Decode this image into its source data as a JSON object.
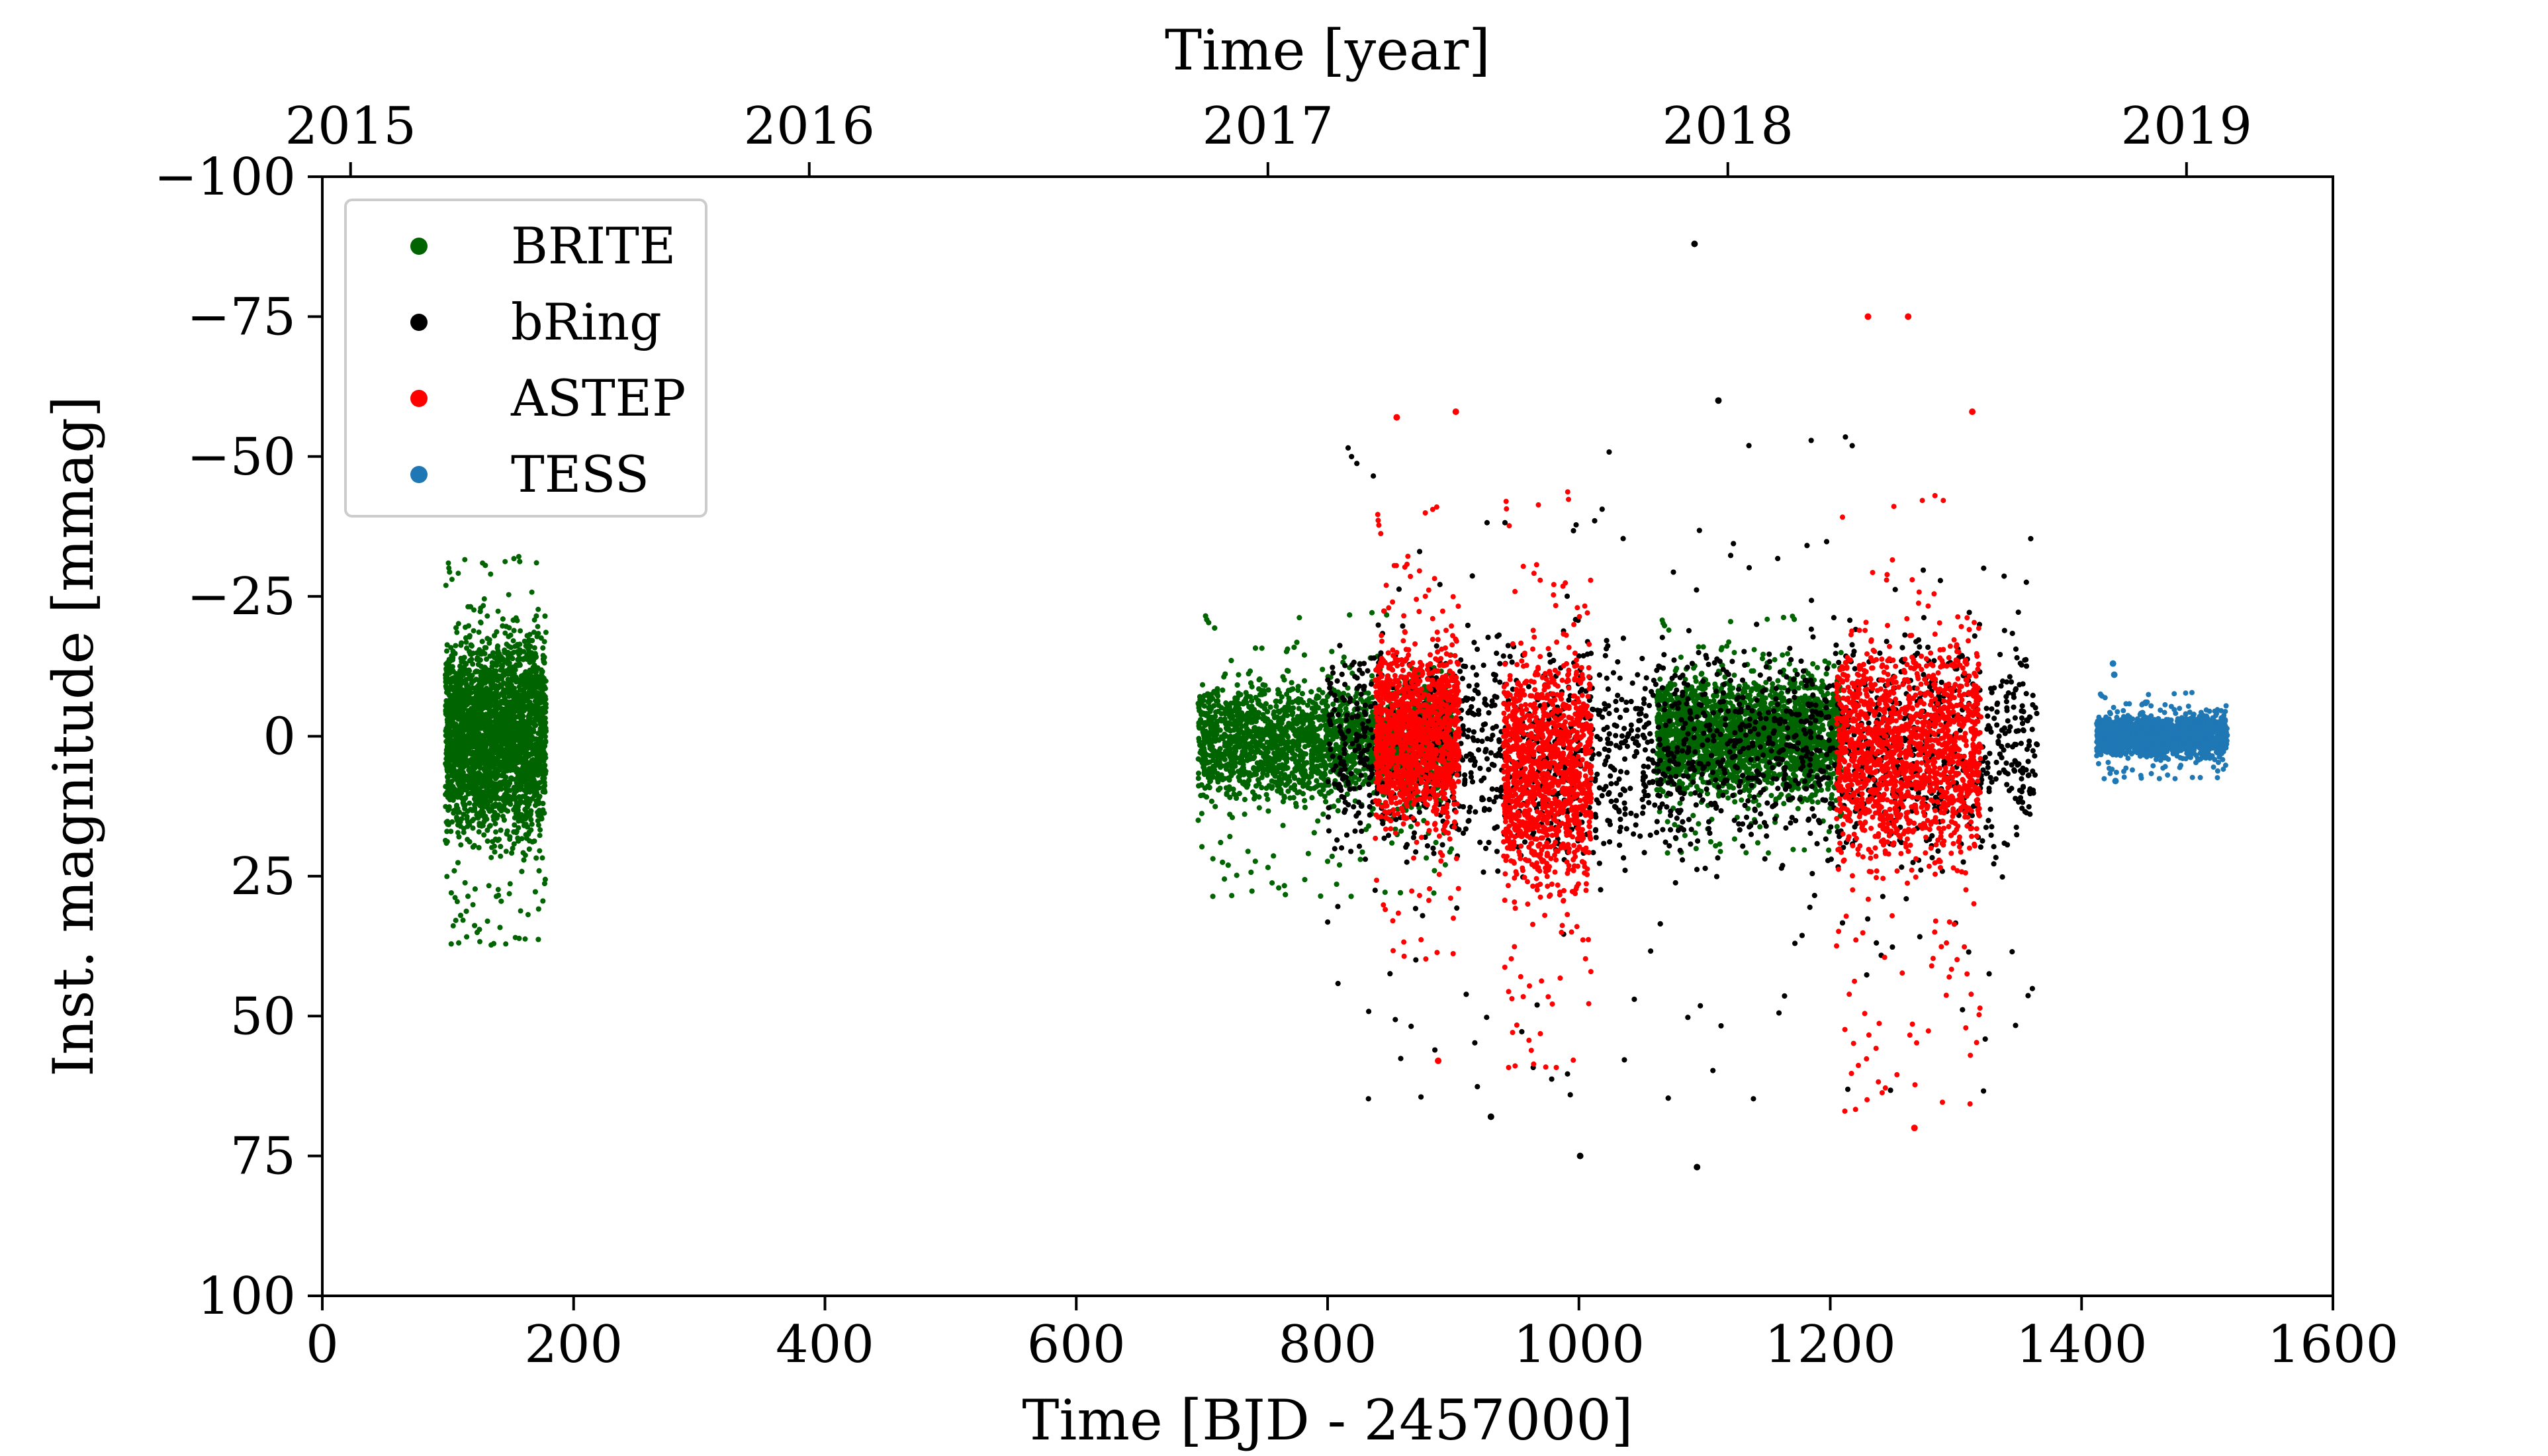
{
  "chart_data": {
    "type": "scatter",
    "xlabel": "Time [BJD - 2457000]",
    "ylabel": "Inst. magnitude [mmag]",
    "top_xlabel": "Time [year]",
    "xlim": [
      0,
      1600
    ],
    "ylim": [
      100,
      -100
    ],
    "y_inverted": true,
    "x_ticks": [
      0,
      200,
      400,
      600,
      800,
      1000,
      1200,
      1400,
      1600
    ],
    "x_tick_labels": [
      "0",
      "200",
      "400",
      "600",
      "800",
      "1000",
      "1200",
      "1400",
      "1600"
    ],
    "y_ticks": [
      -100,
      -75,
      -50,
      -25,
      0,
      25,
      50,
      75,
      100
    ],
    "y_tick_labels": [
      "−100",
      "−75",
      "−50",
      "−25",
      "0",
      "25",
      "50",
      "75",
      "100"
    ],
    "top_ticks": [
      {
        "label": "2015",
        "x": 22.5
      },
      {
        "label": "2016",
        "x": 387.5
      },
      {
        "label": "2017",
        "x": 752.5
      },
      {
        "label": "2018",
        "x": 1118.5
      },
      {
        "label": "2019",
        "x": 1483.5
      }
    ],
    "grid": false,
    "legend_position": "top-left",
    "series": [
      {
        "name": "BRITE",
        "color": "#006400",
        "segments": [
          {
            "x_range": [
              98,
              178
            ],
            "y_range": [
              -24,
              24
            ],
            "outlier_range": [
              -33,
              39
            ],
            "count": 4000
          },
          {
            "x_range": [
              697,
              900
            ],
            "y_range": [
              -14,
              16
            ],
            "outlier_range": [
              -23,
              30
            ],
            "count": 5000
          },
          {
            "x_range": [
              1062,
              1210
            ],
            "y_range": [
              -15,
              15
            ],
            "outlier_range": [
              -22,
              22
            ],
            "count": 3500
          }
        ]
      },
      {
        "name": "bRing",
        "color": "#000000",
        "segments": [
          {
            "x_range": [
              800,
              1365
            ],
            "y_range": [
              -25,
              30
            ],
            "outlier_range": [
              -55,
              68
            ],
            "count": 4500
          }
        ],
        "outliers": [
          [
            1092,
            -88
          ],
          [
            1094,
            77
          ],
          [
            1001,
            75
          ],
          [
            930,
            68
          ],
          [
            1111,
            -60
          ]
        ]
      },
      {
        "name": "ASTEP",
        "color": "#ff0000",
        "segments": [
          {
            "x_range": [
              838,
              905
            ],
            "y_range": [
              -22,
              22
            ],
            "outlier_range": [
              -42,
              42
            ],
            "count": 1300
          },
          {
            "x_range": [
              940,
              1010
            ],
            "y_range": [
              -22,
              35
            ],
            "outlier_range": [
              -45,
              62
            ],
            "count": 1300
          },
          {
            "x_range": [
              1205,
              1320
            ],
            "y_range": [
              -24,
              30
            ],
            "outlier_range": [
              -45,
              70
            ],
            "count": 1600
          }
        ],
        "outliers": [
          [
            855,
            -57
          ],
          [
            902,
            -58
          ],
          [
            888,
            58
          ],
          [
            1230,
            -75
          ],
          [
            1262,
            -75
          ],
          [
            1313,
            -58
          ],
          [
            1267,
            70
          ]
        ]
      },
      {
        "name": "TESS",
        "color": "#1f77b4",
        "segments": [
          {
            "x_range": [
              1412,
              1516
            ],
            "y_range": [
              -5,
              5
            ],
            "outlier_range": [
              -8,
              8
            ],
            "count": 1800
          }
        ],
        "outliers": [
          [
            1425,
            -13
          ],
          [
            1426,
            -11
          ],
          [
            1451,
            -6
          ],
          [
            1427,
            8
          ]
        ]
      }
    ]
  }
}
